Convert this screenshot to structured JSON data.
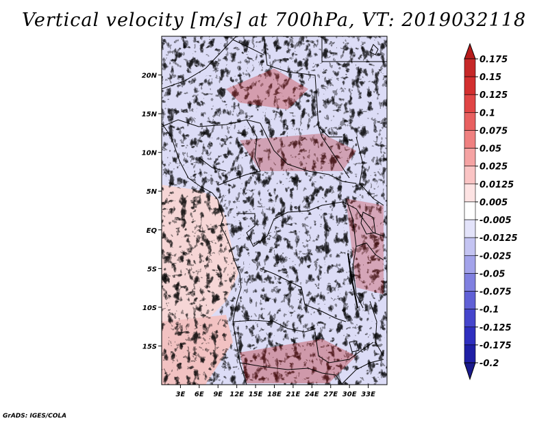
{
  "title": "Vertical velocity [m/s] at 700hPa, VT: 2019032118",
  "footer": "GrADS: IGES/COLA",
  "map": {
    "lon_range": [
      0,
      36
    ],
    "lat_range": [
      -20,
      25
    ],
    "lon_ticks": [
      "3E",
      "6E",
      "9E",
      "12E",
      "15E",
      "18E",
      "21E",
      "24E",
      "27E",
      "30E",
      "33E"
    ],
    "lon_tick_values": [
      3,
      6,
      9,
      12,
      15,
      18,
      21,
      24,
      27,
      30,
      33
    ],
    "lat_ticks": [
      "20N",
      "15N",
      "10N",
      "5N",
      "EQ",
      "5S",
      "10S",
      "15S"
    ],
    "lat_tick_values": [
      20,
      15,
      10,
      5,
      0,
      -5,
      -10,
      -15
    ]
  },
  "colorbar": {
    "labels": [
      "0.175",
      "0.15",
      "0.125",
      "0.1",
      "0.075",
      "0.05",
      "0.025",
      "0.0125",
      "0.005",
      "-0.005",
      "-0.0125",
      "-0.025",
      "-0.05",
      "-0.075",
      "-0.1",
      "-0.125",
      "-0.175",
      "-0.2"
    ],
    "colors": [
      "#b71c1c",
      "#c62828",
      "#d32f2f",
      "#e04545",
      "#e86060",
      "#ef8080",
      "#f5a3a3",
      "#fac4c4",
      "#fde3e3",
      "#ffffff",
      "#e3e3fa",
      "#c4c4f2",
      "#a3a3ea",
      "#8080e0",
      "#6060d6",
      "#4545cc",
      "#2f2fbf",
      "#1f1fa5",
      "#1a1a8c"
    ]
  }
}
